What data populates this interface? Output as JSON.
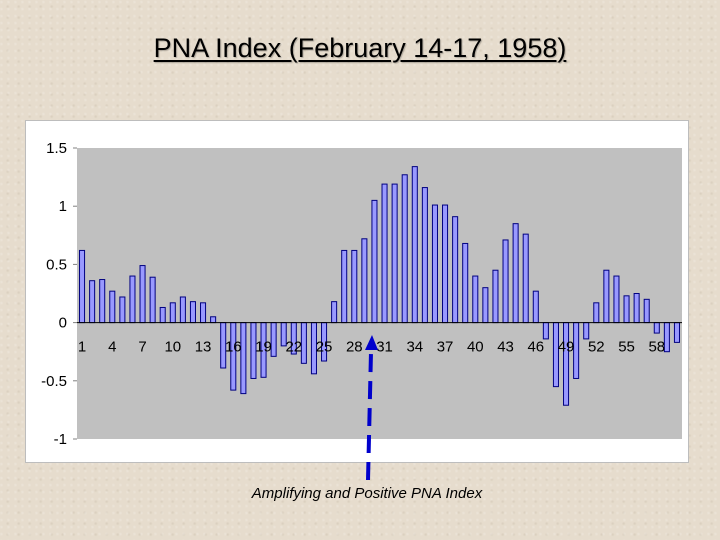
{
  "slide": {
    "title": "PNA Index (February 14-17, 1958)",
    "caption": "Amplifying and Positive PNA Index"
  },
  "colors": {
    "plot_background": "#c0c0c0",
    "bar_fill": "#9999ff",
    "bar_stroke": "#000080",
    "arrow": "#0000cc",
    "axis": "#808080"
  },
  "chart_data": {
    "type": "bar",
    "title": "",
    "xlabel": "",
    "ylabel": "",
    "ylim": [
      -1,
      1.5
    ],
    "yticks": [
      -1,
      -0.5,
      0,
      0.5,
      1,
      1.5
    ],
    "yticklabels": [
      "-1",
      "-0.5",
      "0",
      "0.5",
      "1",
      "1.5"
    ],
    "grid": false,
    "legend": "none",
    "categories": [
      "1",
      "2",
      "3",
      "4",
      "5",
      "6",
      "7",
      "8",
      "9",
      "10",
      "11",
      "12",
      "13",
      "14",
      "15",
      "16",
      "17",
      "18",
      "19",
      "20",
      "21",
      "22",
      "23",
      "24",
      "25",
      "26",
      "27",
      "28",
      "29",
      "30",
      "31",
      "32",
      "33",
      "34",
      "35",
      "36",
      "37",
      "38",
      "39",
      "40",
      "41",
      "42",
      "43",
      "44",
      "45",
      "46",
      "47",
      "48",
      "49",
      "50",
      "51",
      "52",
      "53",
      "54",
      "55",
      "56",
      "57",
      "58",
      "59",
      "60"
    ],
    "xticklabels": [
      "1",
      "4",
      "7",
      "10",
      "13",
      "16",
      "19",
      "22",
      "25",
      "28",
      "31",
      "34",
      "37",
      "40",
      "43",
      "46",
      "49",
      "52",
      "55",
      "58"
    ],
    "values": [
      0.62,
      0.36,
      0.37,
      0.27,
      0.22,
      0.4,
      0.49,
      0.39,
      0.13,
      0.17,
      0.22,
      0.18,
      0.17,
      0.05,
      -0.39,
      -0.58,
      -0.61,
      -0.48,
      -0.47,
      -0.29,
      -0.2,
      -0.27,
      -0.35,
      -0.44,
      -0.33,
      0.18,
      0.62,
      0.62,
      0.72,
      1.05,
      1.19,
      1.19,
      1.27,
      1.34,
      1.16,
      1.01,
      1.01,
      0.91,
      0.68,
      0.4,
      0.3,
      0.45,
      0.71,
      0.85,
      0.76,
      0.27,
      -0.14,
      -0.55,
      -0.71,
      -0.48,
      -0.14,
      0.17,
      0.45,
      0.4,
      0.23,
      0.25,
      0.2,
      -0.09,
      -0.25,
      -0.17
    ]
  }
}
